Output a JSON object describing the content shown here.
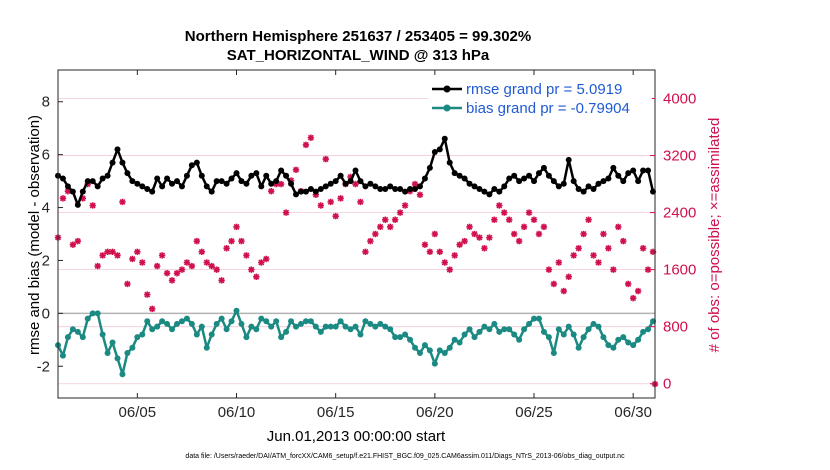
{
  "chart_data": {
    "type": "line",
    "title": "Northern Hemisphere 251637 / 253405 = 99.302%",
    "subtitle": "SAT_HORIZONTAL_WIND @ 313 hPa",
    "xlabel": "Jun.01,2013 00:00:00 start",
    "ylabel": "rmse and bias (model - observation)",
    "y2label": "# of obs: o=possible; ×=assimilated",
    "footnote": "data file: /Users/raeder/DAI/ATM_forcXX/CAM6_setup/f.e21.FHIST_BGC.f09_025.CAM6assim.011/Diags_NTrS_2013-06/obs_diag_output.nc",
    "xlim": [
      1.0,
      31.1
    ],
    "ylim": [
      -3.2,
      9.2
    ],
    "y2lim": [
      -200,
      4400
    ],
    "xticks": [
      {
        "v": 5,
        "label": "06/05"
      },
      {
        "v": 10,
        "label": "06/10"
      },
      {
        "v": 15,
        "label": "06/15"
      },
      {
        "v": 20,
        "label": "06/20"
      },
      {
        "v": 25,
        "label": "06/25"
      },
      {
        "v": 30,
        "label": "06/30"
      }
    ],
    "yticks": [
      {
        "v": -2,
        "label": "-2"
      },
      {
        "v": 0,
        "label": "0"
      },
      {
        "v": 2,
        "label": "2"
      },
      {
        "v": 4,
        "label": "4"
      },
      {
        "v": 6,
        "label": "6"
      },
      {
        "v": 8,
        "label": "8"
      }
    ],
    "y2ticks": [
      {
        "v": 0,
        "label": "0"
      },
      {
        "v": 800,
        "label": "800"
      },
      {
        "v": 1600,
        "label": "1600"
      },
      {
        "v": 2400,
        "label": "2400"
      },
      {
        "v": 3200,
        "label": "3200"
      },
      {
        "v": 4000,
        "label": "4000"
      }
    ],
    "legend_position": "top-right",
    "colors": {
      "rmse": "#000000",
      "bias": "#1a8a82",
      "obs": "#d0104c",
      "legend_text": "#1f5ad6",
      "zero": "#b3b3b3"
    },
    "series": [
      {
        "name": "rmse grand pr = 5.0919",
        "axis": "left",
        "x": [
          1.0,
          1.25,
          1.5,
          1.75,
          2.0,
          2.25,
          2.5,
          2.75,
          3.0,
          3.25,
          3.5,
          3.75,
          4.0,
          4.25,
          4.5,
          4.75,
          5.0,
          5.25,
          5.5,
          5.75,
          6.0,
          6.25,
          6.5,
          6.75,
          7.0,
          7.25,
          7.5,
          7.75,
          8.0,
          8.25,
          8.5,
          8.75,
          9.0,
          9.25,
          9.5,
          9.75,
          10.0,
          10.25,
          10.5,
          10.75,
          11.0,
          11.25,
          11.5,
          11.75,
          12.0,
          12.25,
          12.5,
          12.75,
          13.0,
          13.25,
          13.5,
          13.75,
          14.0,
          14.25,
          14.5,
          14.75,
          15.0,
          15.25,
          15.5,
          15.75,
          16.0,
          16.25,
          16.5,
          16.75,
          17.0,
          17.25,
          17.5,
          17.75,
          18.0,
          18.25,
          18.5,
          18.75,
          19.0,
          19.25,
          19.5,
          19.75,
          20.0,
          20.25,
          20.5,
          20.75,
          21.0,
          21.25,
          21.5,
          21.75,
          22.0,
          22.25,
          22.5,
          22.75,
          23.0,
          23.25,
          23.5,
          23.75,
          24.0,
          24.25,
          24.5,
          24.75,
          25.0,
          25.25,
          25.5,
          25.75,
          26.0,
          26.25,
          26.5,
          26.75,
          27.0,
          27.25,
          27.5,
          27.75,
          28.0,
          28.25,
          28.5,
          28.75,
          29.0,
          29.25,
          29.5,
          29.75,
          30.0,
          30.25,
          30.5,
          30.75,
          31.0
        ],
        "values": [
          5.2,
          5.1,
          4.8,
          4.6,
          4.1,
          4.6,
          5.0,
          5.0,
          4.8,
          5.1,
          5.2,
          5.7,
          6.2,
          5.7,
          5.3,
          5.0,
          4.9,
          4.8,
          4.7,
          4.6,
          5.1,
          4.8,
          5.1,
          4.9,
          5.0,
          4.8,
          5.2,
          5.6,
          5.7,
          5.2,
          4.8,
          4.6,
          5.0,
          5.0,
          4.9,
          5.1,
          5.3,
          5.0,
          4.9,
          5.2,
          5.3,
          4.8,
          5.2,
          4.9,
          5.0,
          5.4,
          5.2,
          4.9,
          4.5,
          4.6,
          4.6,
          4.7,
          4.6,
          4.7,
          4.8,
          4.9,
          5.0,
          5.2,
          4.9,
          5.0,
          5.4,
          5.0,
          4.8,
          4.9,
          4.8,
          4.7,
          4.7,
          4.8,
          4.7,
          4.7,
          4.6,
          4.7,
          4.7,
          4.8,
          5.1,
          5.5,
          6.1,
          6.2,
          6.6,
          5.7,
          5.3,
          5.2,
          5.1,
          4.9,
          4.8,
          4.7,
          4.6,
          4.5,
          4.7,
          4.6,
          4.8,
          5.1,
          5.2,
          5.0,
          5.1,
          5.2,
          5.0,
          5.3,
          5.5,
          5.2,
          5.0,
          4.8,
          4.9,
          5.8,
          5.0,
          4.7,
          4.6,
          4.8,
          4.7,
          4.9,
          5.0,
          5.1,
          5.5,
          5.2,
          5.0,
          5.3,
          5.4,
          5.0,
          5.4,
          5.4,
          4.6
        ]
      },
      {
        "name": "bias grand pr = -0.79904",
        "axis": "left",
        "x": [
          1.0,
          1.25,
          1.5,
          1.75,
          2.0,
          2.25,
          2.5,
          2.75,
          3.0,
          3.25,
          3.5,
          3.75,
          4.0,
          4.25,
          4.5,
          4.75,
          5.0,
          5.25,
          5.5,
          5.75,
          6.0,
          6.25,
          6.5,
          6.75,
          7.0,
          7.25,
          7.5,
          7.75,
          8.0,
          8.25,
          8.5,
          8.75,
          9.0,
          9.25,
          9.5,
          9.75,
          10.0,
          10.25,
          10.5,
          10.75,
          11.0,
          11.25,
          11.5,
          11.75,
          12.0,
          12.25,
          12.5,
          12.75,
          13.0,
          13.25,
          13.5,
          13.75,
          14.0,
          14.25,
          14.5,
          14.75,
          15.0,
          15.25,
          15.5,
          15.75,
          16.0,
          16.25,
          16.5,
          16.75,
          17.0,
          17.25,
          17.5,
          17.75,
          18.0,
          18.25,
          18.5,
          18.75,
          19.0,
          19.25,
          19.5,
          19.75,
          20.0,
          20.25,
          20.5,
          20.75,
          21.0,
          21.25,
          21.5,
          21.75,
          22.0,
          22.25,
          22.5,
          22.75,
          23.0,
          23.25,
          23.5,
          23.75,
          24.0,
          24.25,
          24.5,
          24.75,
          25.0,
          25.25,
          25.5,
          25.75,
          26.0,
          26.25,
          26.5,
          26.75,
          27.0,
          27.25,
          27.5,
          27.75,
          28.0,
          28.25,
          28.5,
          28.75,
          29.0,
          29.25,
          29.5,
          29.75,
          30.0,
          30.25,
          30.5,
          30.75,
          31.0
        ],
        "values": [
          -1.2,
          -1.6,
          -0.9,
          -0.6,
          -0.7,
          -0.9,
          -0.2,
          0.0,
          0.0,
          -0.8,
          -1.5,
          -1.1,
          -1.7,
          -2.3,
          -1.5,
          -1.3,
          -0.9,
          -0.8,
          -0.3,
          -0.6,
          -0.5,
          -0.3,
          -0.4,
          -0.6,
          -0.4,
          -0.3,
          -0.2,
          -0.4,
          -0.8,
          -0.5,
          -1.3,
          -0.8,
          -0.4,
          -0.2,
          -0.6,
          -0.3,
          0.1,
          -0.4,
          -0.9,
          -0.5,
          -0.6,
          -0.2,
          -0.3,
          -0.5,
          -0.3,
          -0.9,
          -0.7,
          -0.3,
          -0.5,
          -0.4,
          -0.3,
          -0.3,
          -0.5,
          -0.7,
          -0.5,
          -0.5,
          -0.5,
          -0.3,
          -0.5,
          -0.6,
          -0.5,
          -0.8,
          -0.3,
          -0.4,
          -0.5,
          -0.4,
          -0.5,
          -0.6,
          -0.9,
          -0.9,
          -0.8,
          -1.0,
          -1.3,
          -1.5,
          -1.2,
          -1.4,
          -1.9,
          -1.4,
          -1.5,
          -1.3,
          -1.0,
          -1.1,
          -0.8,
          -0.6,
          -0.9,
          -0.7,
          -0.5,
          -0.6,
          -0.4,
          -0.7,
          -0.6,
          -0.6,
          -0.8,
          -1.0,
          -0.6,
          -0.4,
          -0.2,
          -0.2,
          -0.7,
          -0.9,
          -1.5,
          -0.6,
          -0.8,
          -0.5,
          -0.8,
          -1.3,
          -0.9,
          -0.6,
          -0.4,
          -0.5,
          -0.9,
          -1.2,
          -1.3,
          -1.0,
          -0.9,
          -1.1,
          -1.2,
          -1.0,
          -0.7,
          -0.6,
          -0.3
        ]
      },
      {
        "name": "# of obs (assimilated)",
        "axis": "right",
        "x": [
          1.0,
          1.25,
          1.5,
          1.75,
          2.0,
          2.25,
          2.5,
          2.75,
          3.0,
          3.25,
          3.5,
          3.75,
          4.0,
          4.25,
          4.5,
          4.75,
          5.0,
          5.25,
          5.5,
          5.75,
          6.0,
          6.25,
          6.5,
          6.75,
          7.0,
          7.25,
          7.5,
          7.75,
          8.0,
          8.25,
          8.5,
          8.75,
          9.0,
          9.25,
          9.5,
          9.75,
          10.0,
          10.25,
          10.5,
          10.75,
          11.0,
          11.25,
          11.5,
          11.75,
          12.0,
          12.25,
          12.5,
          12.75,
          13.0,
          13.25,
          13.5,
          13.75,
          14.0,
          14.25,
          14.5,
          14.75,
          15.0,
          15.25,
          15.5,
          15.75,
          16.0,
          16.25,
          16.5,
          16.75,
          17.0,
          17.25,
          17.5,
          17.75,
          18.0,
          18.25,
          18.5,
          18.75,
          19.0,
          19.25,
          19.5,
          19.75,
          20.0,
          20.25,
          20.5,
          20.75,
          21.0,
          21.25,
          21.5,
          21.75,
          22.0,
          22.25,
          22.5,
          22.75,
          23.0,
          23.25,
          23.5,
          23.75,
          24.0,
          24.25,
          24.5,
          24.75,
          25.0,
          25.25,
          25.5,
          25.75,
          26.0,
          26.25,
          26.5,
          26.75,
          27.0,
          27.25,
          27.5,
          27.75,
          28.0,
          28.25,
          28.5,
          28.75,
          29.0,
          29.25,
          29.5,
          29.75,
          30.0,
          30.25,
          30.5,
          30.75,
          31.0,
          31.1
        ],
        "values": [
          2050,
          2600,
          2700,
          1950,
          2000,
          2600,
          2800,
          2500,
          1650,
          1800,
          1850,
          1850,
          1800,
          2550,
          1400,
          1750,
          1850,
          1700,
          1250,
          1050,
          1650,
          1800,
          1550,
          1450,
          1550,
          1600,
          1700,
          1650,
          2000,
          1850,
          1700,
          1650,
          1600,
          1450,
          1900,
          2000,
          2200,
          2000,
          1800,
          1600,
          1500,
          1700,
          1750,
          2700,
          2800,
          2800,
          2400,
          2850,
          3000,
          2700,
          3350,
          3450,
          2650,
          2500,
          3150,
          2550,
          2350,
          2600,
          2800,
          2900,
          2800,
          2550,
          1850,
          2000,
          2100,
          2200,
          2300,
          2200,
          2300,
          2400,
          2500,
          2700,
          2800,
          2650,
          1950,
          1850,
          2100,
          1850,
          1700,
          1600,
          1800,
          1950,
          2000,
          2200,
          2100,
          2050,
          1900,
          2050,
          2300,
          2500,
          2400,
          2300,
          2100,
          2000,
          2200,
          2400,
          2300,
          2100,
          2200,
          1600,
          1400,
          1700,
          1300,
          1500,
          1800,
          1900,
          2100,
          2300,
          1800,
          1700,
          2100,
          1900,
          1600,
          2200,
          2000,
          1400,
          1200,
          1300,
          1900,
          1600,
          1850,
          -5
        ]
      }
    ]
  }
}
